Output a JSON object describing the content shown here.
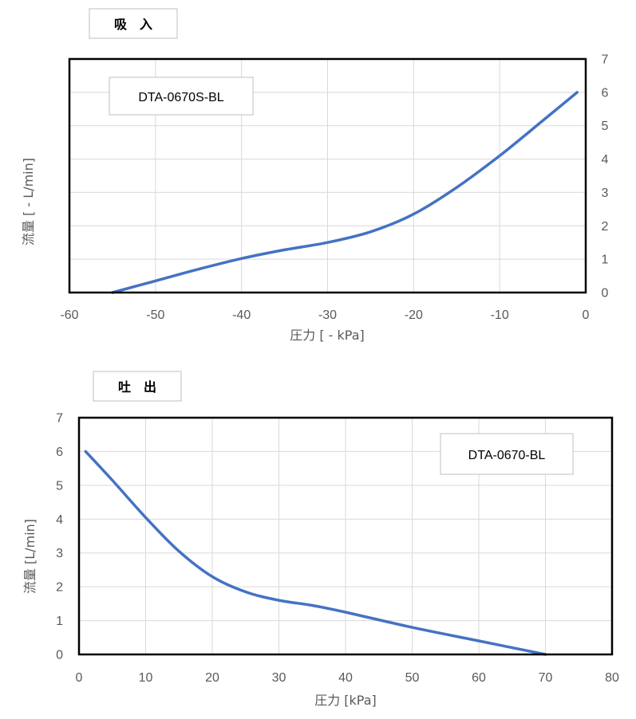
{
  "colors": {
    "series": "#4472c4"
  },
  "chart_data": [
    {
      "type": "line",
      "section_label": "吸　入",
      "model_label": "DTA-0670S-BL",
      "xlabel": "圧力 [ - kPa]",
      "ylabel": "流量 [ - L/min]",
      "xlim": [
        -60,
        0
      ],
      "ylim": [
        0,
        7
      ],
      "y_axis_position": "right",
      "grid": true,
      "x_ticks": [
        "-60",
        "-50",
        "-40",
        "-30",
        "-20",
        "-10",
        "0"
      ],
      "y_ticks": [
        "0",
        "1",
        "2",
        "3",
        "4",
        "5",
        "6",
        "7"
      ],
      "series": [
        {
          "x": [
            -55,
            -50,
            -45,
            -40,
            -35,
            -30,
            -25,
            -20,
            -15,
            -10,
            -5,
            -1
          ],
          "y": [
            0,
            0.35,
            0.7,
            1.02,
            1.28,
            1.5,
            1.82,
            2.35,
            3.15,
            4.1,
            5.15,
            6.0
          ]
        }
      ]
    },
    {
      "type": "line",
      "section_label": "吐　出",
      "model_label": "DTA-0670-BL",
      "xlabel": "圧力 [kPa]",
      "ylabel": "流量 [L/min]",
      "xlim": [
        0,
        80
      ],
      "ylim": [
        0,
        7
      ],
      "y_axis_position": "left",
      "grid": true,
      "x_ticks": [
        "0",
        "10",
        "20",
        "30",
        "40",
        "50",
        "60",
        "70",
        "80"
      ],
      "y_ticks": [
        "0",
        "1",
        "2",
        "3",
        "4",
        "5",
        "6",
        "7"
      ],
      "series": [
        {
          "x": [
            1,
            5,
            10,
            15,
            20,
            25,
            30,
            35,
            40,
            50,
            60,
            70
          ],
          "y": [
            6.0,
            5.15,
            4.05,
            3.05,
            2.3,
            1.85,
            1.6,
            1.45,
            1.25,
            0.8,
            0.4,
            0
          ]
        }
      ]
    }
  ]
}
